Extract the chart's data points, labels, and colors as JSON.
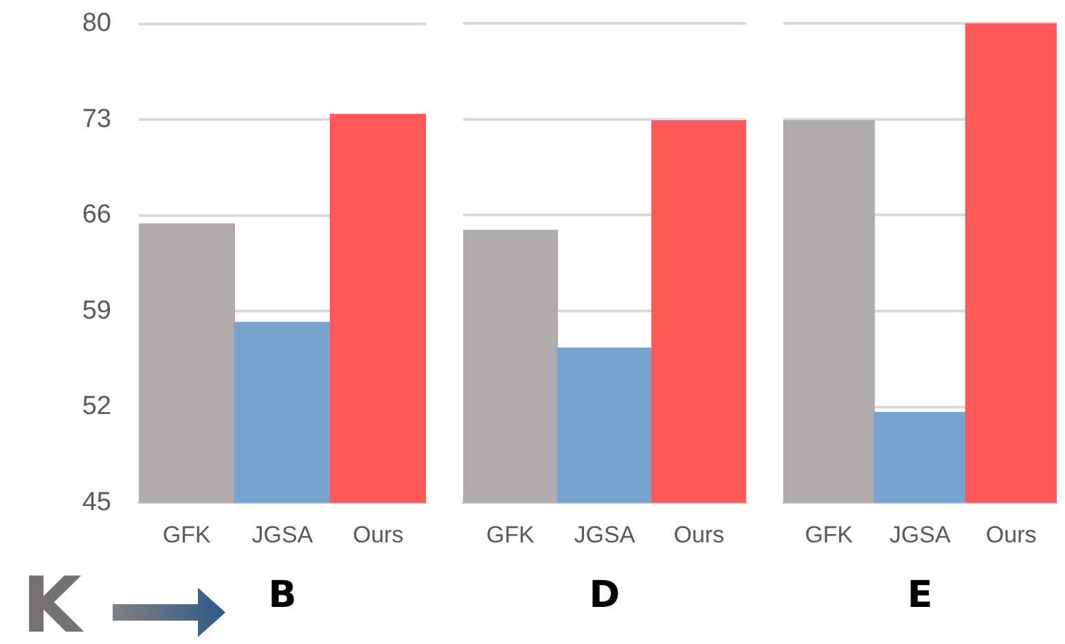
{
  "chart_data": [
    {
      "type": "bar",
      "categories": [
        "GFK",
        "JGSA",
        "Ours"
      ],
      "values": [
        65.4,
        58.2,
        73.4
      ],
      "colors": [
        "#b0acab",
        "#77a4cf",
        "#ff5a5a"
      ],
      "xlabel": "B",
      "ylim": [
        45,
        80
      ],
      "yticks": [
        45,
        52,
        59,
        66,
        73,
        80
      ],
      "grid": "y",
      "legend": false,
      "annotations": [
        "K"
      ]
    },
    {
      "type": "bar",
      "categories": [
        "GFK",
        "JGSA",
        "Ours"
      ],
      "values": [
        64.9,
        56.3,
        72.9
      ],
      "colors": [
        "#b0acab",
        "#77a4cf",
        "#ff5a5a"
      ],
      "xlabel": "D",
      "ylim": [
        45,
        80
      ],
      "yticks": [
        45,
        52,
        59,
        66,
        73,
        80
      ],
      "grid": "y",
      "legend": false,
      "tick_labels": "x"
    },
    {
      "type": "bar",
      "categories": [
        "GFK",
        "JGSA",
        "Ours"
      ],
      "values": [
        72.9,
        51.6,
        80
      ],
      "colors": [
        "#b0acab",
        "#77a4cf",
        "#ff5a5a"
      ],
      "xlabel": "E",
      "ylim": [
        45,
        80
      ],
      "yticks": [
        45,
        52,
        59,
        66,
        73,
        80
      ],
      "grid": "y",
      "legend": false,
      "tick_labels": "x"
    }
  ]
}
